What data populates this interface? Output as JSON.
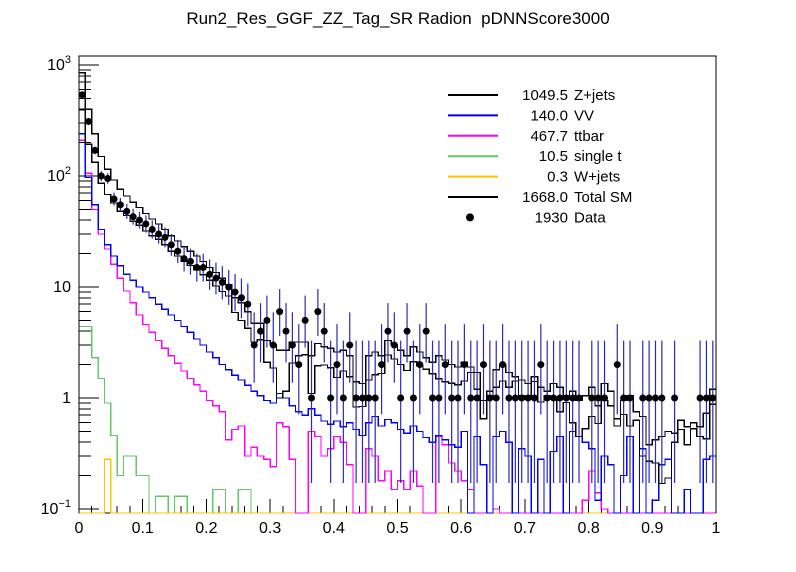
{
  "title": "Run2_Res_GGF_ZZ_Tag_SR Radion  pDNNScore3000",
  "chart_data": {
    "type": "line",
    "style": "step-histogram",
    "title": "Run2_Res_GGF_ZZ_Tag_SR Radion  pDNNScore3000",
    "xlabel": "",
    "ylabel": "",
    "xlim": [
      0,
      1
    ],
    "ylim": [
      0.092,
      1206
    ],
    "yscale": "log",
    "grid": false,
    "n_bins": 100,
    "bin_width": 0.01,
    "x_ticks": [
      {
        "label": "0",
        "value": 0.0
      },
      {
        "label": "0.1",
        "value": 0.1
      },
      {
        "label": "0.2",
        "value": 0.2
      },
      {
        "label": "0.3",
        "value": 0.3
      },
      {
        "label": "0.4",
        "value": 0.4
      },
      {
        "label": "0.5",
        "value": 0.5
      },
      {
        "label": "0.6",
        "value": 0.6
      },
      {
        "label": "0.7",
        "value": 0.7
      },
      {
        "label": "0.8",
        "value": 0.8
      },
      {
        "label": "0.9",
        "value": 0.9
      },
      {
        "label": "1",
        "value": 1.0
      }
    ],
    "y_ticks": [
      {
        "base": "10",
        "exp": "3",
        "value": 1000
      },
      {
        "base": "10",
        "exp": "2",
        "value": 100
      },
      {
        "base": "10",
        "exp": "",
        "value": 10
      },
      {
        "base": "1",
        "exp": "",
        "value": 1
      },
      {
        "base": "10",
        "exp": "−1",
        "value": 0.1
      }
    ],
    "series": [
      {
        "key": "single_t",
        "name": "single t",
        "yield": "10.5",
        "color": "#63c763",
        "values": [
          4.4,
          4.4,
          2.3,
          1.5,
          0.9,
          0.46,
          0.2,
          0.3,
          0.3,
          0.2,
          0.2,
          0.01,
          0.13,
          0.13,
          0.01,
          0.13,
          0.13,
          0.01,
          0.01,
          0.01,
          0.01,
          0.15,
          0.15,
          0.01,
          0.01,
          0.15,
          0.15,
          0.01,
          0.01,
          0.01,
          0.01,
          0.01,
          0.01,
          0.01,
          0.01,
          0.01,
          0.01,
          0.01,
          0.01,
          0.01,
          0.01,
          0.01,
          0.01,
          0.01,
          0.01,
          0.01,
          0.01,
          0.01,
          0.01,
          0.01,
          0.01,
          0.01,
          0.01,
          0.01,
          0.01,
          0.01,
          0.01,
          0.01,
          0.01,
          0.01,
          0.01,
          0.01,
          0.01,
          0.01,
          0.01,
          0.01,
          0.01,
          0.01,
          0.01,
          0.01,
          0.01,
          0.01,
          0.01,
          0.01,
          0.01,
          0.01,
          0.01,
          0.01,
          0.01,
          0.01,
          0.01,
          0.01,
          0.01,
          0.01,
          0.01,
          0.01,
          0.01,
          0.01,
          0.01,
          0.01,
          0.01,
          0.01,
          0.01,
          0.01,
          0.01,
          0.01,
          0.01,
          0.01,
          0.01,
          0.01
        ]
      },
      {
        "key": "w_jets",
        "name": "W+jets",
        "yield": "0.3",
        "color": "#fdc400",
        "values": [
          0.01,
          0.01,
          0.01,
          0.01,
          0.28,
          0.01,
          0.01,
          0.01,
          0.01,
          0.01,
          0.01,
          0.01,
          0.01,
          0.01,
          0.01,
          0.01,
          0.01,
          0.01,
          0.01,
          0.01,
          0.01,
          0.01,
          0.01,
          0.01,
          0.01,
          0.01,
          0.01,
          0.01,
          0.01,
          0.01,
          0.01,
          0.01,
          0.01,
          0.01,
          0.01,
          0.01,
          0.01,
          0.01,
          0.01,
          0.01,
          0.01,
          0.01,
          0.01,
          0.01,
          0.01,
          0.01,
          0.01,
          0.01,
          0.01,
          0.01,
          0.01,
          0.01,
          0.01,
          0.01,
          0.01,
          0.01,
          0.01,
          0.01,
          0.01,
          0.01,
          0.01,
          0.01,
          0.01,
          0.01,
          0.01,
          0.01,
          0.01,
          0.01,
          0.01,
          0.01,
          0.01,
          0.01,
          0.01,
          0.01,
          0.01,
          0.01,
          0.01,
          0.01,
          0.01,
          0.01,
          0.01,
          0.01,
          0.01,
          0.01,
          0.01,
          0.01,
          0.01,
          0.01,
          0.01,
          0.01,
          0.01,
          0.01,
          0.01,
          0.01,
          0.01,
          0.01,
          0.01,
          0.01,
          0.01,
          0.01
        ]
      },
      {
        "key": "ttbar",
        "name": "ttbar",
        "yield": "467.7",
        "color": "#ff00ff",
        "values": [
          210,
          106,
          50,
          30,
          22,
          16,
          12,
          9.2,
          7.2,
          5.6,
          4.6,
          3.9,
          3.3,
          2.8,
          2.4,
          2.05,
          1.75,
          1.5,
          1.32,
          1.15,
          0.95,
          0.85,
          0.75,
          0.42,
          0.52,
          0.56,
          0.3,
          0.36,
          0.3,
          0.28,
          0.24,
          0.6,
          0.55,
          0.28,
          0.05,
          0.05,
          0.5,
          0.45,
          0.3,
          0.35,
          0.45,
          0.4,
          0.25,
          0.05,
          0.05,
          0.35,
          0.3,
          0.18,
          0.22,
          0.15,
          0.18,
          0.15,
          0.22,
          0.16,
          0.05,
          0.05,
          0.45,
          0.38,
          0.26,
          0.22,
          0.18,
          0.15,
          0.05,
          0.05,
          0.05,
          0.1,
          0.08,
          0.05,
          0.05,
          0.05,
          0.08,
          0.06,
          0.05,
          0.05,
          0.05,
          0.05,
          0.06,
          0.05,
          0.05,
          0.12,
          0.22,
          0.14,
          0.1,
          0.05,
          0.04,
          0.04,
          0.04,
          0.04,
          0.03,
          0.03,
          0.04,
          0.03,
          0.03,
          0.03,
          0.03,
          0.02,
          0.02,
          0.02,
          0.02,
          0.02
        ]
      },
      {
        "key": "vv",
        "name": "VV",
        "yield": "140.0",
        "color": "#0000f5",
        "values": [
          240,
          97,
          55,
          33,
          24,
          19,
          15.5,
          13,
          11.5,
          10,
          9,
          8,
          7,
          6.3,
          5.6,
          5.0,
          4.4,
          3.9,
          3.4,
          3.0,
          2.6,
          2.3,
          2.0,
          1.8,
          1.6,
          1.45,
          1.3,
          1.15,
          1.05,
          0.95,
          0.9,
          1.1,
          1.0,
          0.85,
          0.75,
          0.7,
          0.8,
          0.7,
          0.62,
          0.58,
          0.62,
          0.55,
          0.6,
          0.52,
          0.46,
          0.6,
          0.68,
          0.56,
          0.64,
          0.6,
          0.52,
          0.48,
          0.56,
          0.5,
          0.44,
          0.4,
          0.46,
          0.42,
          0.38,
          0.36,
          0.5,
          0.05,
          0.45,
          0.25,
          0.05,
          0.45,
          0.5,
          0.4,
          0.08,
          0.35,
          0.3,
          0.08,
          0.28,
          0.05,
          0.33,
          0.45,
          0.08,
          0.5,
          0.45,
          0.4,
          0.35,
          0.12,
          0.3,
          0.25,
          0.05,
          0.2,
          0.45,
          0.08,
          0.35,
          0.08,
          0.12,
          0.25,
          0.28,
          0.05,
          0.08,
          0.15,
          0.05,
          0.08,
          0.28,
          0.3
        ]
      },
      {
        "key": "z_jets",
        "name": "Z+jets",
        "yield": "1049.5",
        "color": "#000000",
        "values": [
          396,
          193,
          133,
          86,
          68,
          57,
          48,
          44,
          39,
          36,
          32,
          29,
          27,
          24,
          21,
          19,
          17,
          15.6,
          14.3,
          12.9,
          11.5,
          10.2,
          9.1,
          8.3,
          5.9,
          5.0,
          4.25,
          3.2,
          3.35,
          2.1,
          1.86,
          1.0,
          1.15,
          2.07,
          2.4,
          2.45,
          1.1,
          1.95,
          1.98,
          1.87,
          1.53,
          1.75,
          1.55,
          0.83,
          0.84,
          1.45,
          1.62,
          1.66,
          2.44,
          2.25,
          2.0,
          1.77,
          2.12,
          1.94,
          1.81,
          1.65,
          1.49,
          1.4,
          1.36,
          1.32,
          1.42,
          1.7,
          1.2,
          0.65,
          1.05,
          1.25,
          1.42,
          1.25,
          1.42,
          1.05,
          0.97,
          1.41,
          0.92,
          1.05,
          0.97,
          0.75,
          0.91,
          0.6,
          0.45,
          0.53,
          0.68,
          0.59,
          0.95,
          0.85,
          0.56,
          0.71,
          0.56,
          0.63,
          0.3,
          0.27,
          0.26,
          0.17,
          0.19,
          0.4,
          0.52,
          0.38,
          0.53,
          0.45,
          0.43,
          0.88
        ]
      },
      {
        "key": "total_sm",
        "name": "Total SM",
        "yield": "1668.0",
        "color": "#000000",
        "values": [
          850,
          400,
          240,
          150,
          115,
          92,
          76,
          66,
          58,
          52,
          46,
          41,
          37,
          33,
          29,
          26,
          23,
          21,
          19,
          17,
          15,
          13.5,
          12,
          10.5,
          8.0,
          7.2,
          6.0,
          4.7,
          4.7,
          3.3,
          3.0,
          2.7,
          2.7,
          3.2,
          3.2,
          3.2,
          2.4,
          3.1,
          2.9,
          2.8,
          2.6,
          2.7,
          2.4,
          1.4,
          1.35,
          2.4,
          2.6,
          2.4,
          3.3,
          3.0,
          2.7,
          2.4,
          2.9,
          2.6,
          2.3,
          2.1,
          2.4,
          2.2,
          2.0,
          1.9,
          2.1,
          1.9,
          1.7,
          0.95,
          1.15,
          1.8,
          2.0,
          1.7,
          1.55,
          1.45,
          1.35,
          1.55,
          1.25,
          1.15,
          1.35,
          1.25,
          1.05,
          1.15,
          0.95,
          1.05,
          1.25,
          0.85,
          1.35,
          1.15,
          0.65,
          0.95,
          1.05,
          0.75,
          0.68,
          0.38,
          0.42,
          0.45,
          0.5,
          0.48,
          0.63,
          0.55,
          0.6,
          0.55,
          0.73,
          1.2
        ]
      }
    ],
    "data_points": {
      "name": "Data",
      "total": "1930",
      "marker_color": "#000000",
      "error_bar_color": "#2a2ab8",
      "counts": [
        540,
        310,
        170,
        100,
        95,
        62,
        55,
        48,
        43,
        40,
        37,
        33,
        30,
        28,
        24,
        21,
        18,
        17,
        15,
        15,
        13,
        12,
        11,
        10,
        9,
        8,
        7,
        3,
        4,
        5,
        3,
        6,
        4,
        3,
        2,
        5,
        1,
        6,
        4,
        1,
        2,
        1,
        3,
        1,
        1,
        1,
        1,
        2,
        4,
        3,
        1,
        4,
        1,
        2,
        4,
        1,
        1,
        2,
        1,
        1,
        2,
        1,
        1,
        2,
        1,
        1,
        2,
        1,
        1,
        1,
        1,
        1,
        2,
        1,
        1,
        1,
        1,
        1,
        1,
        0,
        1,
        1,
        1,
        0,
        2,
        1,
        1,
        0,
        1,
        1,
        1,
        1,
        0,
        1,
        0,
        0,
        0,
        1,
        1,
        1
      ]
    },
    "legend": {
      "position": "top-right",
      "entries": [
        {
          "value": "1049.5",
          "name": "Z+jets",
          "color": "#000000",
          "style": "line"
        },
        {
          "value": "140.0",
          "name": "VV",
          "color": "#0000f5",
          "style": "line"
        },
        {
          "value": "467.7",
          "name": "ttbar",
          "color": "#ff00ff",
          "style": "line"
        },
        {
          "value": "10.5",
          "name": "single t",
          "color": "#63c763",
          "style": "line"
        },
        {
          "value": "0.3",
          "name": "W+jets",
          "color": "#fdc400",
          "style": "line"
        },
        {
          "value": "1668.0",
          "name": "Total SM",
          "color": "#000000",
          "style": "line"
        },
        {
          "value": "1930",
          "name": "Data",
          "color": "#000000",
          "style": "marker"
        }
      ]
    }
  }
}
